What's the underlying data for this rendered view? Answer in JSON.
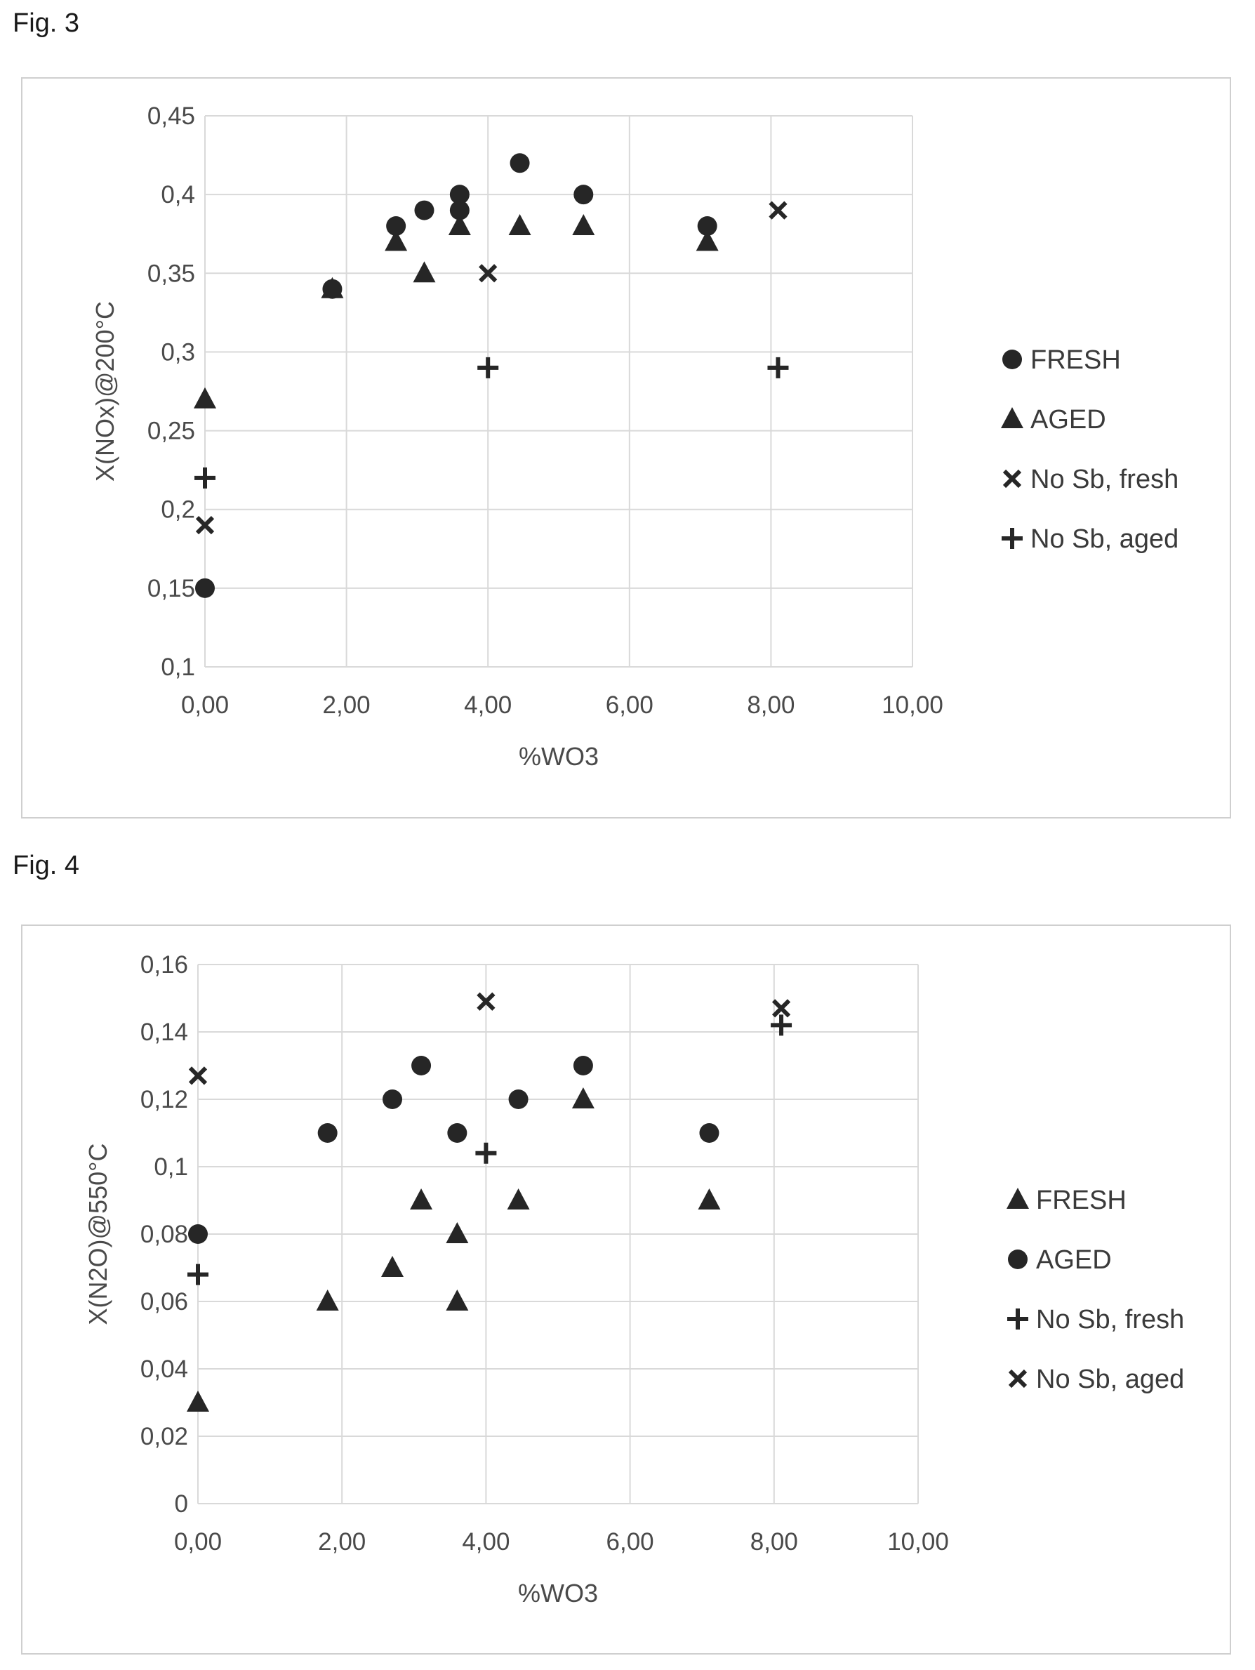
{
  "figures": [
    {
      "caption": "Fig. 3"
    },
    {
      "caption": "Fig. 4"
    }
  ],
  "chart_data": [
    {
      "type": "scatter",
      "xlabel": "%WO3",
      "ylabel": "X(NOx)@200°C",
      "xlim": [
        0,
        10
      ],
      "ylim": [
        0.1,
        0.45
      ],
      "xticks": [
        "0,00",
        "2,00",
        "4,00",
        "6,00",
        "8,00",
        "10,00"
      ],
      "yticks": [
        "0,1",
        "0,15",
        "0,2",
        "0,25",
        "0,3",
        "0,35",
        "0,4",
        "0,45"
      ],
      "grid": true,
      "legend_position": "right",
      "series": [
        {
          "name": "FRESH",
          "marker": "circle",
          "points": [
            [
              0,
              0.15
            ],
            [
              1.8,
              0.34
            ],
            [
              2.7,
              0.38
            ],
            [
              3.1,
              0.39
            ],
            [
              3.6,
              0.39
            ],
            [
              3.6,
              0.4
            ],
            [
              4.45,
              0.42
            ],
            [
              5.35,
              0.4
            ],
            [
              7.1,
              0.38
            ]
          ]
        },
        {
          "name": "AGED",
          "marker": "triangle",
          "points": [
            [
              0,
              0.27
            ],
            [
              1.8,
              0.34
            ],
            [
              2.7,
              0.37
            ],
            [
              3.1,
              0.35
            ],
            [
              3.6,
              0.38
            ],
            [
              4.45,
              0.38
            ],
            [
              5.35,
              0.38
            ],
            [
              7.1,
              0.37
            ]
          ]
        },
        {
          "name": "No Sb, fresh",
          "marker": "x",
          "points": [
            [
              0,
              0.19
            ],
            [
              4.0,
              0.35
            ],
            [
              8.1,
              0.39
            ]
          ]
        },
        {
          "name": "No Sb, aged",
          "marker": "plus",
          "points": [
            [
              0,
              0.22
            ],
            [
              4.0,
              0.29
            ],
            [
              8.1,
              0.29
            ]
          ]
        }
      ]
    },
    {
      "type": "scatter",
      "xlabel": "%WO3",
      "ylabel": "X(N2O)@550°C",
      "xlim": [
        0,
        10
      ],
      "ylim": [
        0,
        0.16
      ],
      "xticks": [
        "0,00",
        "2,00",
        "4,00",
        "6,00",
        "8,00",
        "10,00"
      ],
      "yticks": [
        "0",
        "0,02",
        "0,04",
        "0,06",
        "0,08",
        "0,1",
        "0,12",
        "0,14",
        "0,16"
      ],
      "grid": true,
      "legend_position": "right",
      "series": [
        {
          "name": "FRESH",
          "marker": "triangle",
          "points": [
            [
              0,
              0.03
            ],
            [
              1.8,
              0.06
            ],
            [
              2.7,
              0.07
            ],
            [
              3.1,
              0.09
            ],
            [
              3.6,
              0.08
            ],
            [
              3.6,
              0.06
            ],
            [
              4.45,
              0.09
            ],
            [
              5.35,
              0.12
            ],
            [
              7.1,
              0.09
            ]
          ]
        },
        {
          "name": "AGED",
          "marker": "circle",
          "points": [
            [
              0,
              0.08
            ],
            [
              1.8,
              0.11
            ],
            [
              2.7,
              0.12
            ],
            [
              3.1,
              0.13
            ],
            [
              3.6,
              0.11
            ],
            [
              4.45,
              0.12
            ],
            [
              5.35,
              0.13
            ],
            [
              7.1,
              0.11
            ]
          ]
        },
        {
          "name": "No Sb, fresh",
          "marker": "plus",
          "points": [
            [
              0,
              0.068
            ],
            [
              4.0,
              0.104
            ],
            [
              8.1,
              0.142
            ]
          ]
        },
        {
          "name": "No Sb, aged",
          "marker": "x",
          "points": [
            [
              0,
              0.127
            ],
            [
              4.0,
              0.149
            ],
            [
              8.1,
              0.147
            ]
          ]
        }
      ]
    }
  ],
  "colors": {
    "marker": "#262626",
    "grid": "#d9d9d9",
    "frame": "#cfcfcf",
    "text": "#4a4a4a"
  }
}
